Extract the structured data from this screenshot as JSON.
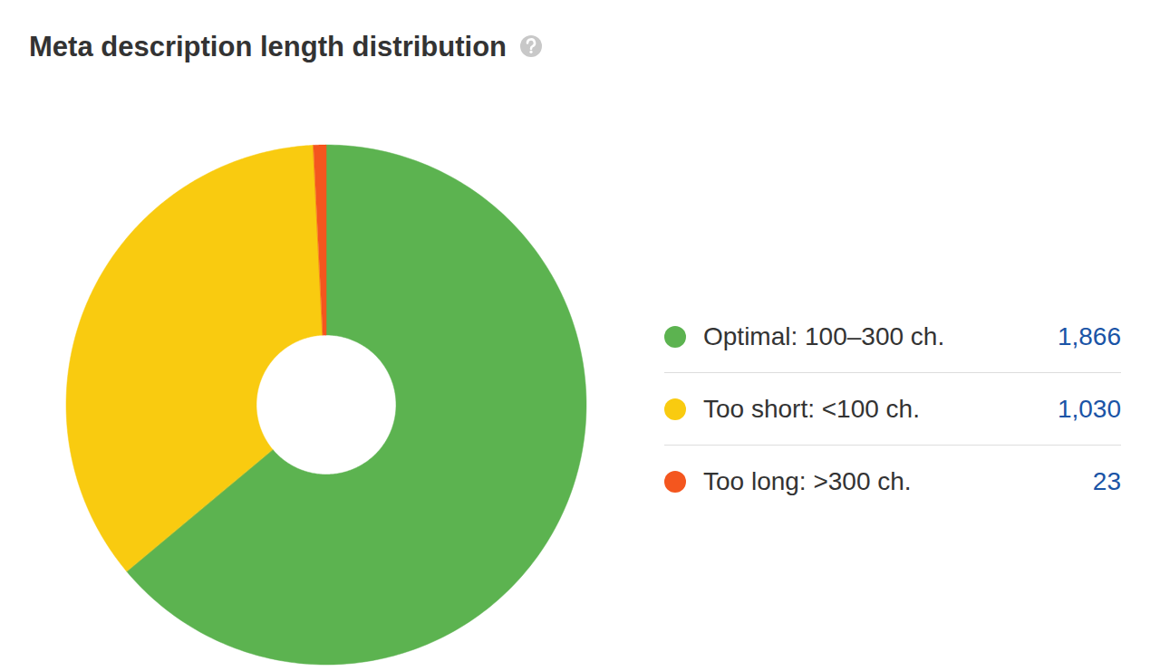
{
  "chart_data": {
    "type": "pie",
    "title": "Meta description length distribution",
    "categories": [
      "Optimal: 100–300 ch.",
      "Too short: <100 ch.",
      "Too long: >300 ch."
    ],
    "values": [
      1866,
      1030,
      23
    ],
    "value_labels": [
      "1,866",
      "1,030",
      "23"
    ],
    "colors": [
      "#5cb350",
      "#f9cb10",
      "#f4561e"
    ],
    "legend": "right"
  }
}
